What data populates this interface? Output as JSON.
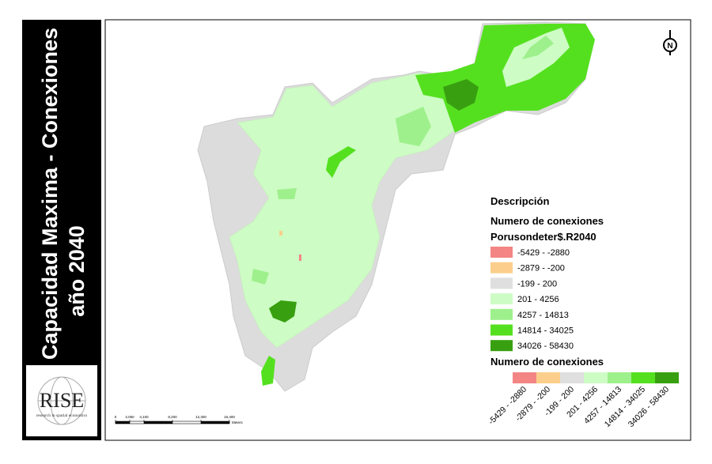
{
  "title": {
    "line1": "Capacidad Maxima - Conexiones",
    "line2": "año 2040"
  },
  "logo": {
    "name": "RISE",
    "tagline": "research in spatial economics"
  },
  "north_arrow": "N",
  "legend": {
    "heading": "Descripción",
    "subheading": "Numero de conexiones",
    "field": "Porusondeter$.R2040",
    "classes": [
      {
        "label": "-5429 - -2880",
        "color": "#f38585"
      },
      {
        "label": "-2879 - -200",
        "color": "#fbcf8b"
      },
      {
        "label": "-199 - 200",
        "color": "#dfdfdf"
      },
      {
        "label": "201 - 4256",
        "color": "#cdfcc4"
      },
      {
        "label": "4257 - 14813",
        "color": "#9ef08c"
      },
      {
        "label": "14814 - 34025",
        "color": "#55e01f"
      },
      {
        "label": "34026 - 58430",
        "color": "#38a010"
      }
    ]
  },
  "colorbar": {
    "title": "Numero de conexiones"
  },
  "scale_bar": {
    "unit": "Meters",
    "ticks": [
      {
        "value": 0,
        "label": "0"
      },
      {
        "value": 2050,
        "label": "2,050"
      },
      {
        "value": 4100,
        "label": "4,100"
      },
      {
        "value": 8200,
        "label": "8,200"
      },
      {
        "value": 12300,
        "label": "12,300"
      },
      {
        "value": 16400,
        "label": "16,400"
      }
    ]
  }
}
